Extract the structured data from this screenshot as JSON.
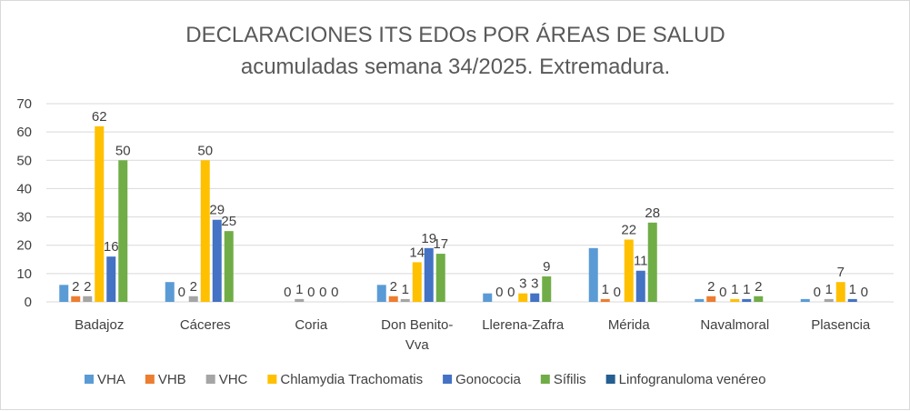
{
  "chart_data": {
    "type": "bar",
    "title": [
      "DECLARACIONES ITS EDOs POR ÁREAS DE SALUD",
      "acumuladas semana 34/2025. Extremadura."
    ],
    "xlabel": "",
    "ylabel": "",
    "ylim": [
      0,
      70
    ],
    "yticks": [
      0,
      10,
      20,
      30,
      40,
      50,
      60,
      70
    ],
    "grid": true,
    "legend_position": "bottom",
    "categories": [
      [
        "Badajoz"
      ],
      [
        "Cáceres"
      ],
      [
        "Coria"
      ],
      [
        "Don Benito-",
        "Vva"
      ],
      [
        "Llerena-Zafra"
      ],
      [
        "Mérida"
      ],
      [
        "Navalmoral"
      ],
      [
        "Plasencia"
      ]
    ],
    "series": [
      {
        "name": "VHA",
        "color": "#5b9bd5",
        "values": [
          6,
          7,
          0,
          6,
          3,
          19,
          1,
          1
        ],
        "labels": [
          null,
          null,
          null,
          null,
          null,
          null,
          null,
          null
        ]
      },
      {
        "name": "VHB",
        "color": "#ed7d31",
        "values": [
          2,
          0,
          0,
          2,
          0,
          1,
          2,
          0
        ],
        "labels": [
          2,
          0,
          0,
          2,
          0,
          1,
          2,
          0
        ]
      },
      {
        "name": "VHC",
        "color": "#a5a5a5",
        "values": [
          2,
          2,
          1,
          1,
          0,
          0,
          0,
          1
        ],
        "labels": [
          2,
          2,
          1,
          1,
          0,
          0,
          0,
          1
        ]
      },
      {
        "name": "Chlamydia Trachomatis",
        "color": "#ffc000",
        "values": [
          62,
          50,
          0,
          14,
          3,
          22,
          1,
          7
        ],
        "labels": [
          62,
          50,
          0,
          14,
          3,
          22,
          1,
          7
        ]
      },
      {
        "name": "Gonococia",
        "color": "#4472c4",
        "values": [
          16,
          29,
          0,
          19,
          3,
          11,
          1,
          1
        ],
        "labels": [
          16,
          29,
          0,
          19,
          3,
          11,
          1,
          1
        ]
      },
      {
        "name": "Sífilis",
        "color": "#70ad47",
        "values": [
          50,
          25,
          0,
          17,
          9,
          28,
          2,
          0
        ],
        "labels": [
          50,
          25,
          0,
          17,
          9,
          28,
          2,
          0
        ]
      },
      {
        "name": "Linfogranuloma venéreo",
        "color": "#255e91",
        "values": [
          0,
          0,
          0,
          0,
          0,
          0,
          0,
          0
        ],
        "labels": [
          null,
          null,
          null,
          null,
          null,
          null,
          null,
          null
        ]
      }
    ]
  }
}
